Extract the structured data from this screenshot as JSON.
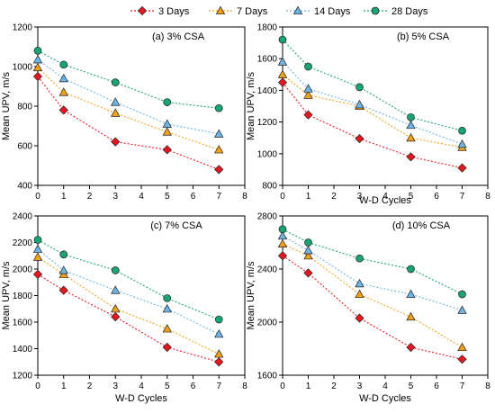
{
  "colors": {
    "3 Days": "#e8171f",
    "7 Days": "#f2a21a",
    "14 Days": "#6fb4e6",
    "28 Days": "#18a573"
  },
  "legend": [
    {
      "label": "3 Days",
      "marker": "diamond"
    },
    {
      "label": "7  Days",
      "marker": "triangle"
    },
    {
      "label": "14  Days",
      "marker": "triangle"
    },
    {
      "label": "28  Days",
      "marker": "circle"
    }
  ],
  "chart_data": [
    {
      "type": "line",
      "panel_label": "(a) 3% CSA",
      "xlabel": "",
      "ylabel": "Mean UPV, m/s",
      "xlim": [
        0,
        8
      ],
      "ylim": [
        400,
        1200
      ],
      "xticks": [
        0,
        1,
        2,
        3,
        4,
        5,
        6,
        7,
        8
      ],
      "yticks": [
        400,
        600,
        800,
        1000,
        1200
      ],
      "x": [
        0,
        1,
        3,
        5,
        7
      ],
      "series": [
        {
          "name": "3 Days",
          "marker": "diamond",
          "values": [
            950,
            780,
            620,
            580,
            480
          ]
        },
        {
          "name": "7 Days",
          "marker": "triangle",
          "values": [
            995,
            870,
            765,
            670,
            580
          ]
        },
        {
          "name": "14 Days",
          "marker": "triangle",
          "values": [
            1035,
            940,
            820,
            710,
            660
          ]
        },
        {
          "name": "28 Days",
          "marker": "circle",
          "values": [
            1080,
            1010,
            920,
            820,
            790
          ]
        }
      ]
    },
    {
      "type": "line",
      "panel_label": "(b) 5% CSA",
      "xlabel": "W-D Cycles",
      "ylabel": "Mean UPV, m/s",
      "xlim": [
        0,
        8
      ],
      "ylim": [
        800,
        1800
      ],
      "xticks": [
        0,
        1,
        2,
        3,
        4,
        5,
        6,
        7,
        8
      ],
      "yticks": [
        800,
        1000,
        1200,
        1400,
        1600,
        1800
      ],
      "x": [
        0,
        1,
        3,
        5,
        7
      ],
      "series": [
        {
          "name": "3 Days",
          "marker": "diamond",
          "values": [
            1450,
            1245,
            1095,
            980,
            910
          ]
        },
        {
          "name": "7 Days",
          "marker": "triangle",
          "values": [
            1500,
            1370,
            1300,
            1100,
            1040
          ]
        },
        {
          "name": "14 Days",
          "marker": "triangle",
          "values": [
            1580,
            1410,
            1310,
            1180,
            1060
          ]
        },
        {
          "name": "28 Days",
          "marker": "circle",
          "values": [
            1720,
            1550,
            1420,
            1230,
            1145
          ]
        }
      ]
    },
    {
      "type": "line",
      "panel_label": "(c) 7% CSA",
      "xlabel": "W-D Cycles",
      "ylabel": "Mean UPV,  m/s",
      "xlim": [
        0,
        8
      ],
      "ylim": [
        1200,
        2400
      ],
      "xticks": [
        0,
        1,
        2,
        3,
        4,
        5,
        6,
        7,
        8
      ],
      "yticks": [
        1200,
        1400,
        1600,
        1800,
        2000,
        2200,
        2400
      ],
      "x": [
        0,
        1,
        3,
        5,
        7
      ],
      "series": [
        {
          "name": "3 Days",
          "marker": "diamond",
          "values": [
            1960,
            1840,
            1640,
            1410,
            1300
          ]
        },
        {
          "name": "7 Days",
          "marker": "triangle",
          "values": [
            2090,
            1960,
            1700,
            1550,
            1360
          ]
        },
        {
          "name": "14 Days",
          "marker": "triangle",
          "values": [
            2150,
            1990,
            1840,
            1700,
            1510
          ]
        },
        {
          "name": "28 Days",
          "marker": "circle",
          "values": [
            2220,
            2110,
            1990,
            1780,
            1620
          ]
        }
      ]
    },
    {
      "type": "line",
      "panel_label": "(d) 10% CSA",
      "xlabel": "W-D Cycles",
      "ylabel": "Mean UPV, m/s",
      "xlim": [
        0,
        8
      ],
      "ylim": [
        1600,
        2800
      ],
      "xticks": [
        0,
        1,
        2,
        3,
        4,
        5,
        6,
        7,
        8
      ],
      "yticks": [
        1600,
        2000,
        2400,
        2800
      ],
      "x": [
        0,
        1,
        3,
        5,
        7
      ],
      "series": [
        {
          "name": "3 Days",
          "marker": "diamond",
          "values": [
            2500,
            2370,
            2030,
            1810,
            1720
          ]
        },
        {
          "name": "7 Days",
          "marker": "triangle",
          "values": [
            2590,
            2500,
            2210,
            2040,
            1810
          ]
        },
        {
          "name": "14 Days",
          "marker": "triangle",
          "values": [
            2650,
            2540,
            2290,
            2210,
            2090
          ]
        },
        {
          "name": "28 Days",
          "marker": "circle",
          "values": [
            2700,
            2600,
            2480,
            2400,
            2210
          ]
        }
      ]
    }
  ]
}
